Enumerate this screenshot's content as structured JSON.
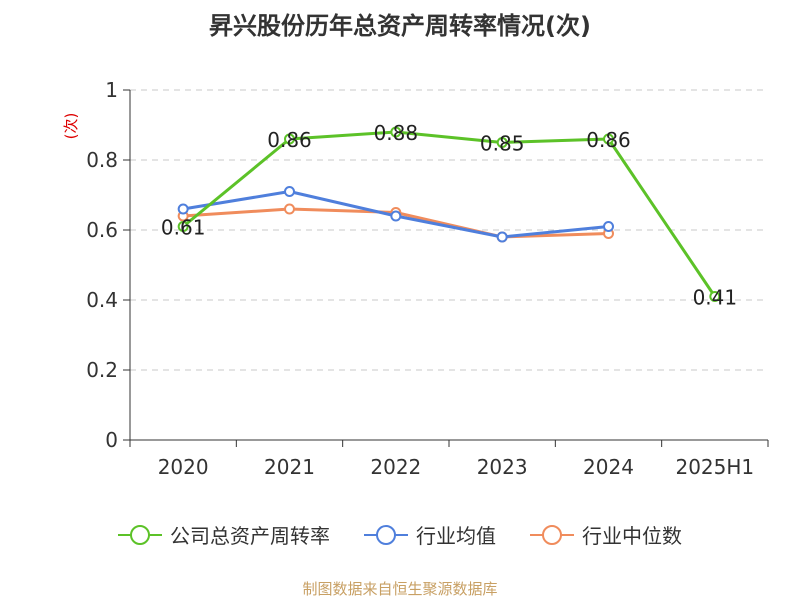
{
  "chart_data": {
    "type": "line",
    "title": "昇兴股份历年总资产周转率情况(次)",
    "ylabel": "(次)",
    "categories": [
      "2020",
      "2021",
      "2022",
      "2023",
      "2024",
      "2025H1"
    ],
    "ylim": [
      0,
      1
    ],
    "yticks": [
      "0",
      "0.2",
      "0.4",
      "0.6",
      "0.8",
      "1"
    ],
    "grid": true,
    "legend_position": "bottom",
    "series": [
      {
        "name": "公司总资产周转率",
        "color": "#5cc228",
        "values": [
          0.61,
          0.86,
          0.88,
          0.85,
          0.86,
          0.41
        ],
        "labels": [
          "0.61",
          "0.86",
          "0.88",
          "0.85",
          "0.86",
          "0.41"
        ]
      },
      {
        "name": "行业均值",
        "color": "#4f7fdc",
        "values": [
          0.66,
          0.71,
          0.64,
          0.58,
          0.61,
          null
        ]
      },
      {
        "name": "行业中位数",
        "color": "#f08c5c",
        "values": [
          0.64,
          0.66,
          0.65,
          0.58,
          0.59,
          null
        ]
      }
    ]
  },
  "source": "制图数据来自恒生聚源数据库"
}
